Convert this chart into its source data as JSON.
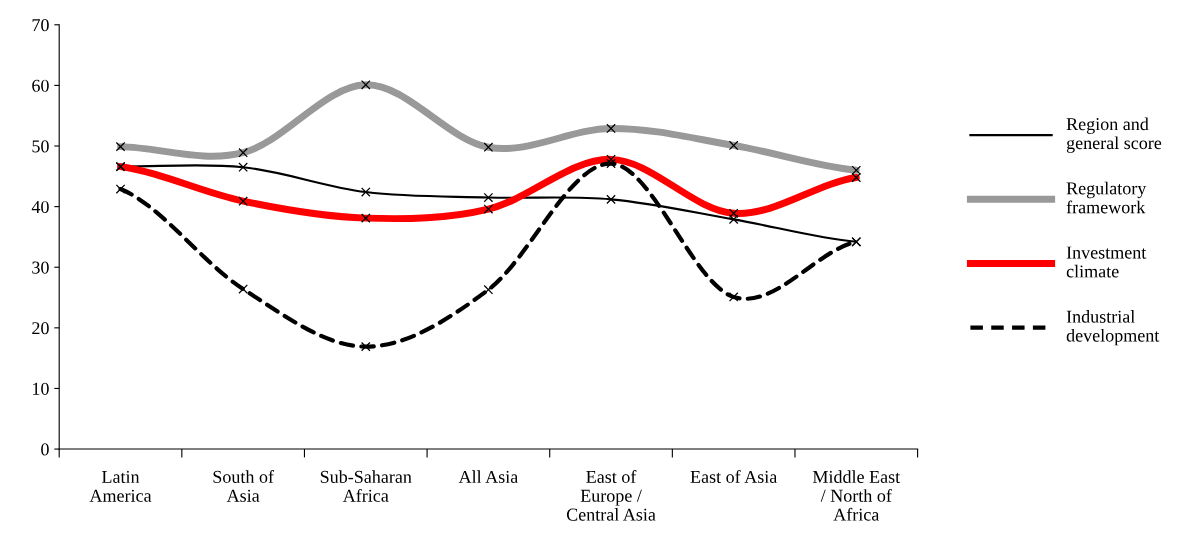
{
  "chart_data": {
    "type": "line",
    "categories": [
      "Latin America",
      "South of Asia",
      "Sub-Saharan Africa",
      "All Asia",
      "East of Europe / Central Asia",
      "East of Asia",
      "Middle East / North of Africa"
    ],
    "series": [
      {
        "name": "Region and general score",
        "color": "#000000",
        "line_style": "solid",
        "values": [
          46.6,
          46.5,
          42.4,
          41.5,
          41.2,
          37.9,
          34.2
        ]
      },
      {
        "name": "Regulatory framework",
        "color": "#999999",
        "line_style": "solid",
        "values": [
          49.9,
          48.9,
          60.1,
          49.8,
          52.9,
          50.1,
          46.0
        ]
      },
      {
        "name": "Investment climate",
        "color": "#ff0000",
        "line_style": "solid",
        "values": [
          46.6,
          40.9,
          38.1,
          39.6,
          47.8,
          38.9,
          44.8
        ]
      },
      {
        "name": "Industrial development",
        "color": "#000000",
        "line_style": "dashed",
        "values": [
          42.9,
          26.4,
          16.9,
          26.3,
          47.1,
          25.1,
          34.2
        ]
      }
    ],
    "ylim": [
      0,
      70
    ],
    "yticks": [
      0,
      10,
      20,
      30,
      40,
      50,
      60,
      70
    ],
    "marker": "cross",
    "legend": "right",
    "grid": false
  }
}
